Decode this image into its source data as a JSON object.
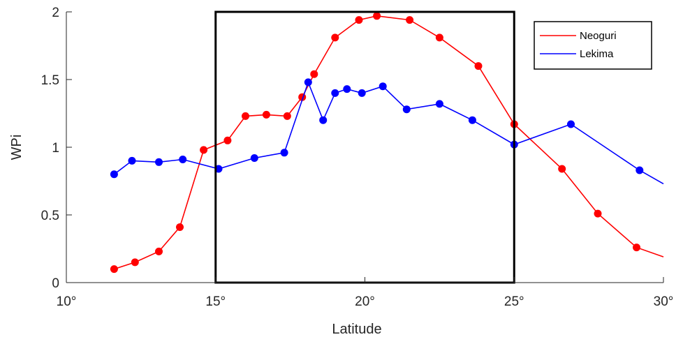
{
  "chart_data": {
    "type": "line",
    "xlabel": "Latitude",
    "ylabel": "WPi",
    "xlim": [
      10,
      30
    ],
    "ylim": [
      0,
      2
    ],
    "x_ticks": [
      10,
      15,
      20,
      25,
      30
    ],
    "x_tick_labels": [
      "10°",
      "15°",
      "20°",
      "25°",
      "30°"
    ],
    "y_ticks": [
      0,
      0.5,
      1,
      1.5,
      2
    ],
    "y_tick_labels": [
      "0",
      "0.5",
      "1",
      "1.5",
      "2"
    ],
    "highlight_box": {
      "x_range": [
        15,
        25
      ],
      "y_range": [
        0,
        2
      ]
    },
    "grid": false,
    "legend_position": "top-right",
    "series": [
      {
        "name": "Neoguri",
        "color": "#ff0000",
        "x": [
          11.6,
          12.3,
          13.1,
          13.8,
          14.6,
          15.4,
          16.0,
          16.7,
          17.4,
          17.9,
          18.3,
          19.0,
          19.8,
          20.4,
          21.5,
          22.5,
          23.8,
          25.0,
          26.6,
          27.8,
          29.1,
          30.0
        ],
        "y": [
          0.1,
          0.15,
          0.23,
          0.41,
          0.98,
          1.05,
          1.23,
          1.24,
          1.23,
          1.37,
          1.54,
          1.81,
          1.94,
          1.97,
          1.94,
          1.81,
          1.6,
          1.17,
          0.84,
          0.51,
          0.26,
          0.19
        ]
      },
      {
        "name": "Lekima",
        "color": "#0000ff",
        "x": [
          11.6,
          12.2,
          13.1,
          13.9,
          15.1,
          16.3,
          17.3,
          18.1,
          18.6,
          19.0,
          19.4,
          19.9,
          20.6,
          21.4,
          22.5,
          23.6,
          25.0,
          26.9,
          29.2,
          30.0
        ],
        "y": [
          0.8,
          0.9,
          0.89,
          0.91,
          0.84,
          0.92,
          0.96,
          1.48,
          1.2,
          1.4,
          1.43,
          1.4,
          1.45,
          1.28,
          1.32,
          1.2,
          1.02,
          1.17,
          0.83,
          0.73
        ]
      }
    ]
  }
}
